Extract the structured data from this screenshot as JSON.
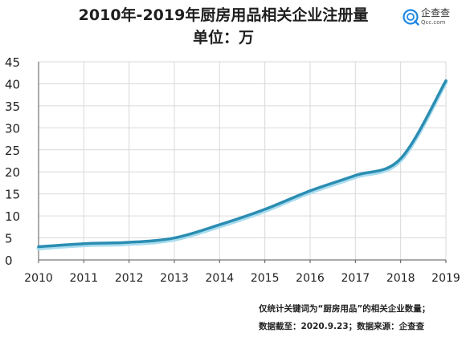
{
  "title": "2010年-2019年厨房用品相关企业注册量",
  "subtitle": "单位：万",
  "logo": {
    "name": "企查查",
    "domain": "Qcc.com",
    "icon": "qcc-logo-icon",
    "color": "#1e88e5"
  },
  "notes": {
    "definition": "仅统计关键词为“厨房用品”的相关企业数量；",
    "source": "数据截至：2020.9.23；数据来源：企查查"
  },
  "colors": {
    "line": "#2b8db2",
    "line_shadow": "#a8dcee",
    "axis": "#555555",
    "grid": "#d9d9d9"
  },
  "chart_data": {
    "type": "line",
    "title": "2010年-2019年厨房用品相关企业注册量",
    "subtitle": "单位：万",
    "x": [
      "2010",
      "2011",
      "2012",
      "2013",
      "2014",
      "2015",
      "2016",
      "2017",
      "2018",
      "2019"
    ],
    "series": [
      {
        "values": [
          3.0,
          3.7,
          4.0,
          5.0,
          8.0,
          11.5,
          15.7,
          19.2,
          23.0,
          40.7
        ]
      }
    ],
    "y_ticks": [
      0,
      5,
      10,
      15,
      20,
      25,
      30,
      35,
      40,
      45
    ],
    "ylim": [
      0,
      45
    ],
    "grid": true,
    "smooth": true,
    "legend": "none"
  }
}
